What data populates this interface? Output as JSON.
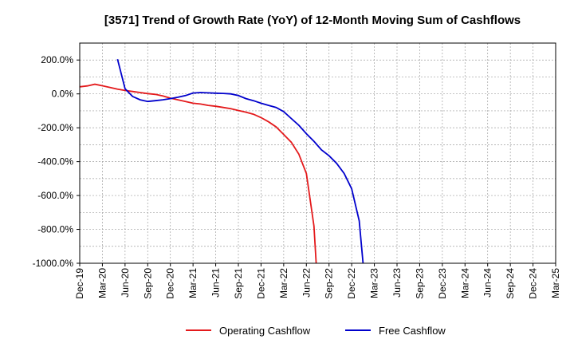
{
  "chart_data": {
    "type": "line",
    "title": "[3571]  Trend of Growth Rate (YoY) of 12-Month Moving Sum of Cashflows",
    "xlabel": "",
    "ylabel": "",
    "x_ticks": [
      "Dec-19",
      "Mar-20",
      "Jun-20",
      "Sep-20",
      "Dec-20",
      "Mar-21",
      "Jun-21",
      "Sep-21",
      "Dec-21",
      "Mar-22",
      "Jun-22",
      "Sep-22",
      "Dec-22",
      "Mar-23",
      "Jun-23",
      "Sep-23",
      "Dec-23",
      "Mar-24",
      "Jun-24",
      "Sep-24",
      "Dec-24",
      "Mar-25"
    ],
    "y_ticks": [
      200,
      0,
      -200,
      -400,
      -600,
      -800,
      -1000
    ],
    "y_tick_labels": [
      "200.0%",
      "0.0%",
      "-200.0%",
      "-400.0%",
      "-600.0%",
      "-800.0%",
      "-1000.0%"
    ],
    "ylim": [
      -1000,
      300
    ],
    "grid": true,
    "legend_position": "bottom",
    "series": [
      {
        "name": "Operating Cashflow",
        "color": "#e41a1c",
        "points": [
          [
            0,
            42
          ],
          [
            1,
            47
          ],
          [
            2,
            57
          ],
          [
            3,
            48
          ],
          [
            4,
            38
          ],
          [
            5,
            28
          ],
          [
            6,
            20
          ],
          [
            7,
            14
          ],
          [
            8,
            8
          ],
          [
            9,
            2
          ],
          [
            10,
            -3
          ],
          [
            11,
            -12
          ],
          [
            12,
            -25
          ],
          [
            13,
            -35
          ],
          [
            14,
            -45
          ],
          [
            15,
            -55
          ],
          [
            16,
            -60
          ],
          [
            17,
            -68
          ],
          [
            18,
            -73
          ],
          [
            19,
            -80
          ],
          [
            20,
            -87
          ],
          [
            21,
            -98
          ],
          [
            22,
            -108
          ],
          [
            23,
            -120
          ],
          [
            24,
            -140
          ],
          [
            25,
            -165
          ],
          [
            26,
            -195
          ],
          [
            27,
            -240
          ],
          [
            28,
            -285
          ],
          [
            29,
            -355
          ],
          [
            30,
            -470
          ],
          [
            31,
            -780
          ],
          [
            31.3,
            -1000
          ]
        ]
      },
      {
        "name": "Free Cashflow",
        "color": "#0000cc",
        "points": [
          [
            5,
            205
          ],
          [
            6,
            30
          ],
          [
            7,
            -15
          ],
          [
            8,
            -35
          ],
          [
            9,
            -45
          ],
          [
            10,
            -40
          ],
          [
            11,
            -35
          ],
          [
            12,
            -28
          ],
          [
            13,
            -20
          ],
          [
            14,
            -10
          ],
          [
            15,
            5
          ],
          [
            16,
            8
          ],
          [
            17,
            6
          ],
          [
            18,
            4
          ],
          [
            19,
            3
          ],
          [
            20,
            0
          ],
          [
            21,
            -10
          ],
          [
            22,
            -28
          ],
          [
            23,
            -40
          ],
          [
            24,
            -55
          ],
          [
            25,
            -68
          ],
          [
            26,
            -80
          ],
          [
            27,
            -105
          ],
          [
            28,
            -145
          ],
          [
            29,
            -185
          ],
          [
            30,
            -235
          ],
          [
            31,
            -280
          ],
          [
            32,
            -330
          ],
          [
            33,
            -365
          ],
          [
            34,
            -410
          ],
          [
            35,
            -470
          ],
          [
            36,
            -560
          ],
          [
            37,
            -750
          ],
          [
            37.5,
            -1000
          ]
        ]
      }
    ]
  }
}
